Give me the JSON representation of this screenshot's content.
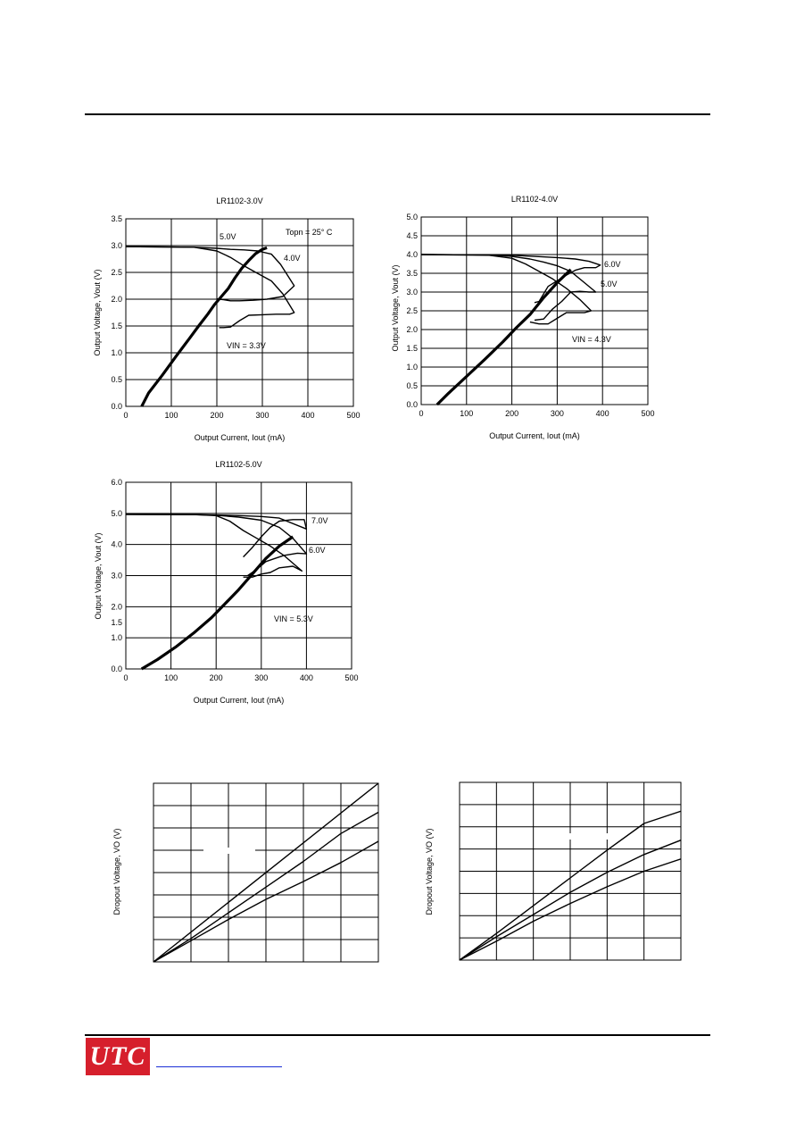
{
  "logo": {
    "text": "UTC",
    "color": "#d61f2c"
  },
  "chart_data": [
    {
      "type": "line",
      "title": "LR1102-3.0V",
      "xlabel": "Output Current, Iout (mA)",
      "ylabel": "Output Voltage, Vout (V)",
      "xlim": [
        0,
        500
      ],
      "ylim": [
        0,
        3.5
      ],
      "xticks": [
        "0",
        "100",
        "200",
        "300",
        "400",
        "500"
      ],
      "yticks": [
        "0.0",
        "0.5",
        "1.0",
        "1.5",
        "2.0",
        "2.5",
        "3.0",
        "3.5"
      ],
      "annotations": [
        "Topn = 25° C",
        "5.0V",
        "4.0V",
        "VIN = 3.3V"
      ],
      "series": [
        {
          "name": "5.0V",
          "x": [
            0,
            150,
            200,
            230,
            260,
            290,
            320,
            340,
            370,
            345,
            310,
            280,
            250,
            230,
            215,
            205,
            200
          ],
          "y": [
            2.98,
            2.97,
            2.95,
            2.93,
            2.92,
            2.9,
            2.84,
            2.65,
            2.25,
            2.05,
            2.0,
            1.98,
            1.97,
            1.97,
            1.99,
            2.0,
            2.01
          ]
        },
        {
          "name": "4.0V",
          "x": [
            0,
            150,
            200,
            230,
            260,
            290,
            320,
            345,
            370,
            360,
            330,
            300,
            270,
            250,
            230,
            215,
            205
          ],
          "y": [
            2.98,
            2.97,
            2.9,
            2.78,
            2.62,
            2.48,
            2.34,
            2.1,
            1.75,
            1.72,
            1.72,
            1.71,
            1.7,
            1.6,
            1.48,
            1.47,
            1.47
          ]
        },
        {
          "name": "3.3V",
          "x": [
            35,
            50,
            80,
            110,
            140,
            160,
            180,
            195,
            210,
            225,
            240,
            255,
            270,
            285,
            300,
            310
          ],
          "y": [
            0,
            0.25,
            0.58,
            0.93,
            1.27,
            1.5,
            1.72,
            1.9,
            2.05,
            2.2,
            2.4,
            2.58,
            2.72,
            2.85,
            2.93,
            2.96
          ]
        }
      ]
    },
    {
      "type": "line",
      "title": "LR1102-4.0V",
      "xlabel": "Output Current, Iout (mA)",
      "ylabel": "Output Voltage, Vout (V)",
      "xlim": [
        0,
        500
      ],
      "ylim": [
        0,
        5.0
      ],
      "xticks": [
        "0",
        "100",
        "200",
        "300",
        "400",
        "500"
      ],
      "yticks": [
        "0.0",
        "0.5",
        "1.0",
        "1.5",
        "2.0",
        "2.5",
        "3.0",
        "3.5",
        "4.0",
        "4.5",
        "5.0"
      ],
      "annotations": [
        "6.0V",
        "5.0V",
        "VIN = 4.3V"
      ],
      "series": [
        {
          "name": "6.0V",
          "x": [
            0,
            150,
            200,
            250,
            300,
            340,
            370,
            395,
            385,
            360,
            340,
            320,
            300,
            280,
            260,
            250
          ],
          "y": [
            4.0,
            3.99,
            3.98,
            3.95,
            3.92,
            3.88,
            3.82,
            3.72,
            3.65,
            3.65,
            3.58,
            3.45,
            3.3,
            3.15,
            2.75,
            2.72
          ]
        },
        {
          "name": "5.0V",
          "x": [
            0,
            150,
            200,
            240,
            270,
            300,
            330,
            360,
            385,
            370,
            350,
            330,
            310,
            290,
            270,
            250
          ],
          "y": [
            4.0,
            3.99,
            3.95,
            3.88,
            3.8,
            3.7,
            3.55,
            3.25,
            3.0,
            3.0,
            3.02,
            3.0,
            2.75,
            2.55,
            2.28,
            2.25
          ]
        },
        {
          "name": "4.3V",
          "x": [
            0,
            150,
            200,
            230,
            260,
            290,
            320,
            350,
            375,
            360,
            340,
            320,
            300,
            280,
            260,
            240
          ],
          "y": [
            4.0,
            3.98,
            3.9,
            3.75,
            3.55,
            3.35,
            3.1,
            2.8,
            2.5,
            2.45,
            2.45,
            2.45,
            2.3,
            2.15,
            2.15,
            2.2
          ]
        },
        {
          "name": "Vin",
          "x": [
            35,
            60,
            100,
            140,
            180,
            210,
            240,
            270,
            300,
            330
          ],
          "y": [
            0,
            0.3,
            0.75,
            1.2,
            1.67,
            2.05,
            2.4,
            2.85,
            3.25,
            3.6
          ]
        }
      ]
    },
    {
      "type": "line",
      "title": "LR1102-5.0V",
      "xlabel": "Output Current, Iout (mA)",
      "ylabel": "Output Voltage, Vout (V)",
      "xlim": [
        0,
        500
      ],
      "ylim": [
        0,
        6.0
      ],
      "xticks": [
        "0",
        "100",
        "200",
        "300",
        "400",
        "500"
      ],
      "yticks": [
        "0.0",
        "1.0",
        "2.0",
        "3.0",
        "4.0",
        "5.0",
        "6.0"
      ],
      "extra_tick": "1.5",
      "annotations": [
        "7.0V",
        "6.0V",
        "VIN = 5.3V"
      ],
      "series": [
        {
          "name": "7.0V",
          "x": [
            0,
            150,
            200,
            250,
            300,
            340,
            400,
            395,
            370,
            340,
            320,
            300,
            280,
            260
          ],
          "y": [
            4.97,
            4.96,
            4.95,
            4.93,
            4.9,
            4.85,
            4.5,
            4.8,
            4.8,
            4.75,
            4.55,
            4.25,
            3.9,
            3.6
          ]
        },
        {
          "name": "6.0V",
          "x": [
            0,
            150,
            200,
            250,
            300,
            340,
            370,
            400,
            380,
            350,
            330,
            310,
            290,
            270
          ],
          "y": [
            4.97,
            4.96,
            4.94,
            4.88,
            4.78,
            4.55,
            4.2,
            3.7,
            3.72,
            3.65,
            3.55,
            3.45,
            3.2,
            3.0
          ]
        },
        {
          "name": "5.3V",
          "x": [
            0,
            150,
            200,
            230,
            260,
            290,
            320,
            350,
            390,
            370,
            340,
            320,
            300,
            280,
            260
          ],
          "y": [
            4.97,
            4.96,
            4.93,
            4.75,
            4.45,
            4.2,
            3.95,
            3.65,
            3.15,
            3.3,
            3.25,
            3.1,
            3.05,
            2.95,
            2.95
          ]
        },
        {
          "name": "Vin",
          "x": [
            35,
            70,
            110,
            150,
            190,
            220,
            250,
            280,
            310,
            340,
            370
          ],
          "y": [
            0,
            0.3,
            0.7,
            1.15,
            1.65,
            2.1,
            2.55,
            3.05,
            3.55,
            3.95,
            4.25
          ]
        }
      ]
    },
    {
      "type": "line",
      "title": "",
      "xlabel": "",
      "ylabel": "Dropout Voltage, VO (V)",
      "xlim": [
        0,
        6
      ],
      "ylim": [
        0,
        8
      ],
      "xticks": [],
      "yticks": [],
      "series": [
        {
          "name": "",
          "x": [
            0,
            6
          ],
          "y": [
            0,
            8
          ]
        },
        {
          "name": "",
          "x": [
            0,
            1,
            2,
            3,
            4,
            5,
            6
          ],
          "y": [
            0,
            1.05,
            2.2,
            3.35,
            4.5,
            5.75,
            6.7
          ]
        },
        {
          "name": "",
          "x": [
            0,
            1,
            2,
            3,
            4,
            5,
            6
          ],
          "y": [
            0,
            0.95,
            1.9,
            2.8,
            3.6,
            4.45,
            5.4
          ]
        }
      ]
    },
    {
      "type": "line",
      "title": "",
      "xlabel": "",
      "ylabel": "Dropout Voltage, VO (V)",
      "xlim": [
        0,
        6
      ],
      "ylim": [
        0,
        8
      ],
      "xticks": [],
      "yticks": [],
      "series": [
        {
          "name": "",
          "x": [
            0,
            1,
            2,
            3,
            4,
            5,
            6
          ],
          "y": [
            0,
            1.2,
            2.45,
            3.7,
            4.95,
            6.15,
            6.7
          ]
        },
        {
          "name": "",
          "x": [
            0,
            1,
            2,
            3,
            4,
            5,
            6
          ],
          "y": [
            0,
            1.05,
            2.05,
            3.05,
            3.95,
            4.75,
            5.4
          ]
        },
        {
          "name": "",
          "x": [
            0,
            1,
            2,
            3,
            4,
            5,
            6
          ],
          "y": [
            0,
            0.85,
            1.75,
            2.55,
            3.3,
            4.0,
            4.55
          ]
        }
      ]
    }
  ]
}
